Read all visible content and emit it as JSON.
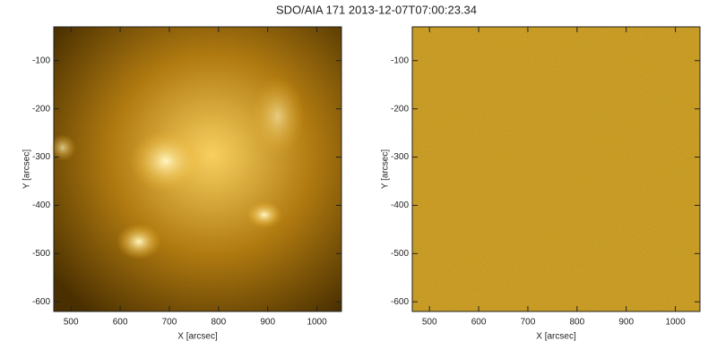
{
  "title": "SDO/AIA 171 2013-12-07T07:00:23.34",
  "chart_data": [
    {
      "type": "image",
      "xlabel": "X [arcsec]",
      "ylabel": "Y [arcsec]",
      "xlim": [
        465,
        1050
      ],
      "ylim": [
        -620,
        -30
      ],
      "xticks": [
        500,
        600,
        700,
        800,
        900,
        1000
      ],
      "yticks": [
        -100,
        -200,
        -300,
        -400,
        -500,
        -600
      ]
    },
    {
      "type": "image",
      "xlabel": "X [arcsec]",
      "ylabel": "Y [arcsec]",
      "xlim": [
        465,
        1050
      ],
      "ylim": [
        -620,
        -30
      ],
      "xticks": [
        500,
        600,
        700,
        800,
        900,
        1000
      ],
      "yticks": [
        -100,
        -200,
        -300,
        -400,
        -500,
        -600
      ]
    }
  ]
}
